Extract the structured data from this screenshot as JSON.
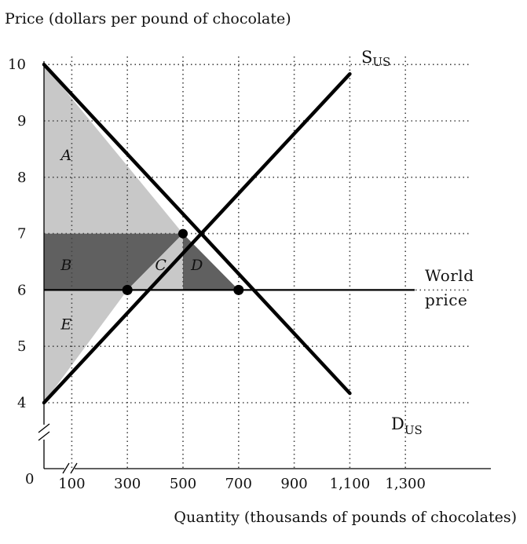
{
  "chart_data": {
    "type": "line",
    "title": "",
    "ylabel": "Price (dollars per pound of chocolate)",
    "xlabel": "Quantity (thousands of pounds of chocolates)",
    "origin_label": "0",
    "xlim": [
      0,
      1400
    ],
    "ylim": [
      4,
      10
    ],
    "x_ticks": [
      {
        "value": 100,
        "label": "100"
      },
      {
        "value": 300,
        "label": "300"
      },
      {
        "value": 500,
        "label": "500"
      },
      {
        "value": 700,
        "label": "700"
      },
      {
        "value": 900,
        "label": "900"
      },
      {
        "value": 1100,
        "label": "1,100"
      },
      {
        "value": 1300,
        "label": "1,300"
      }
    ],
    "y_ticks": [
      {
        "value": 4,
        "label": "4"
      },
      {
        "value": 5,
        "label": "5"
      },
      {
        "value": 6,
        "label": "6"
      },
      {
        "value": 7,
        "label": "7"
      },
      {
        "value": 8,
        "label": "8"
      },
      {
        "value": 9,
        "label": "9"
      },
      {
        "value": 10,
        "label": "10"
      }
    ],
    "grid": "dotted",
    "axis_breaks": true,
    "series": [
      {
        "id": "supply",
        "label_main": "S",
        "label_sub": "US",
        "points": [
          [
            0,
            4
          ],
          [
            1100,
            9.833
          ]
        ]
      },
      {
        "id": "demand",
        "label_main": "D",
        "label_sub": "US",
        "points": [
          [
            0,
            10
          ],
          [
            1100,
            4.167
          ]
        ]
      }
    ],
    "world_price": {
      "value": 6,
      "label_line1": "World",
      "label_line2": "price"
    },
    "equilibrium": {
      "quantity": 500,
      "price": 7
    },
    "marked_points": [
      [
        300,
        6
      ],
      [
        700,
        6
      ]
    ],
    "regions": [
      {
        "label": "A",
        "shade": "light",
        "points": [
          [
            0,
            10
          ],
          [
            0,
            7
          ],
          [
            500,
            7
          ]
        ],
        "label_at": [
          80,
          8.4
        ]
      },
      {
        "label": "B",
        "shade": "dark",
        "points": [
          [
            0,
            7
          ],
          [
            0,
            6
          ],
          [
            300,
            6
          ],
          [
            500,
            7
          ]
        ],
        "label_at": [
          80,
          6.45
        ]
      },
      {
        "label": "C",
        "shade": "light",
        "points": [
          [
            300,
            6
          ],
          [
            500,
            7
          ],
          [
            500,
            6
          ]
        ],
        "label_at": [
          420,
          6.45
        ]
      },
      {
        "label": "D",
        "shade": "dark",
        "points": [
          [
            500,
            6
          ],
          [
            500,
            7
          ],
          [
            700,
            6
          ]
        ],
        "label_at": [
          550,
          6.45
        ]
      },
      {
        "label": "E",
        "shade": "light",
        "points": [
          [
            0,
            6
          ],
          [
            0,
            4
          ],
          [
            300,
            6
          ]
        ],
        "label_at": [
          80,
          5.4
        ]
      }
    ],
    "colors": {
      "light": "#c8c8c8",
      "dark": "#606060",
      "line": "#000000",
      "grid": "#444444"
    }
  }
}
